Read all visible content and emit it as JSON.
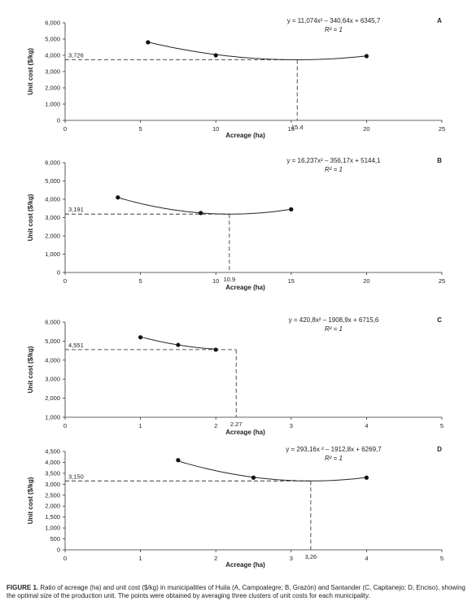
{
  "caption": {
    "label": "FIGURE 1.",
    "text": "Ratio of acreage (ha) and unit cost ($/kg) in municipalities of Huila (A, Campoalegre; B, Grazón) and Santander (C, Capitanejo; D, Enciso), showing the optimal size of the production unit. The points were obtained by averaging three clusters of unit costs for each municipality."
  },
  "chart_data": [
    {
      "panel": "A",
      "type": "scatter",
      "xlabel": "Acreage (ha)",
      "ylabel": "Unit cost ($/kg)",
      "xlim": [
        0,
        25
      ],
      "ylim": [
        0,
        6000
      ],
      "x_ticks": [
        "0",
        "5",
        "10",
        "15",
        "20",
        "25"
      ],
      "y_ticks": [
        "0",
        "1,000",
        "2,000",
        "3,000",
        "4,000",
        "5,000",
        "6,000"
      ],
      "points": {
        "x": [
          5.5,
          10,
          20
        ],
        "y": [
          4800,
          4000,
          3950
        ]
      },
      "fit": {
        "a": 11.074,
        "b": -340.64,
        "c": 6345.7
      },
      "equation": "y = 11,074x² – 340,64x + 6345,7",
      "r2": "R² = 1",
      "optimum": {
        "x": 15.4,
        "y": 3726,
        "x_label": "15.4",
        "y_label": "3,726"
      }
    },
    {
      "panel": "B",
      "type": "scatter",
      "xlabel": "Acreage (ha)",
      "ylabel": "Unit cost ($/kg)",
      "xlim": [
        0,
        25
      ],
      "ylim": [
        0,
        6000
      ],
      "x_ticks": [
        "0",
        "5",
        "10",
        "15",
        "20",
        "25"
      ],
      "y_ticks": [
        "0",
        "1,000",
        "2,000",
        "3,000",
        "4,000",
        "5,000",
        "6,000"
      ],
      "points": {
        "x": [
          3.5,
          9,
          15
        ],
        "y": [
          4100,
          3250,
          3450
        ]
      },
      "fit": {
        "a": 16.237,
        "b": -356.17,
        "c": 5144.1
      },
      "equation": "y = 16,237x² – 356,17x + 5144,1",
      "r2": "R² = 1",
      "optimum": {
        "x": 10.9,
        "y": 3191,
        "x_label": "10.9",
        "y_label": "3,191"
      }
    },
    {
      "panel": "C",
      "type": "scatter",
      "xlabel": "Acreage (ha)",
      "ylabel": "Unit cost ($/kg)",
      "xlim": [
        0,
        5
      ],
      "ylim": [
        1000,
        6000
      ],
      "x_ticks": [
        "0",
        "1",
        "2",
        "3",
        "4",
        "5"
      ],
      "y_ticks": [
        "1,000",
        "2,000",
        "3,000",
        "4,000",
        "5,000",
        "6,000"
      ],
      "points": {
        "x": [
          1,
          1.5,
          2
        ],
        "y": [
          5200,
          4800,
          4550
        ]
      },
      "fit": {
        "a": 420.8,
        "b": -1908.9,
        "c": 6715.6
      },
      "equation": "y = 420,8x² – 1908,9x + 6715,6",
      "r2": "R² = 1",
      "optimum": {
        "x": 2.27,
        "y": 4551,
        "x_label": "2.27",
        "y_label": "4,551"
      }
    },
    {
      "panel": "D",
      "type": "scatter",
      "xlabel": "Acreage (ha)",
      "ylabel": "Unit cost ($/kg)",
      "xlim": [
        0,
        5
      ],
      "ylim": [
        0,
        4500
      ],
      "x_ticks": [
        "0",
        "1",
        "2",
        "3",
        "4",
        "5"
      ],
      "y_ticks": [
        "0",
        "500",
        "1,000",
        "1,500",
        "2,000",
        "2,500",
        "3,000",
        "3,500",
        "4,000",
        "4,500"
      ],
      "points": {
        "x": [
          1.5,
          2.5,
          4
        ],
        "y": [
          4100,
          3300,
          3300
        ]
      },
      "fit": {
        "a": 293.16,
        "b": -1912.8,
        "c": 6269.7
      },
      "equation": "y = 293,16x ² – 1912,8x + 6269,7",
      "r2": "R² = 1",
      "optimum": {
        "x": 3.26,
        "y": 3150,
        "x_label": "3,26",
        "y_label": "3,150"
      }
    }
  ]
}
